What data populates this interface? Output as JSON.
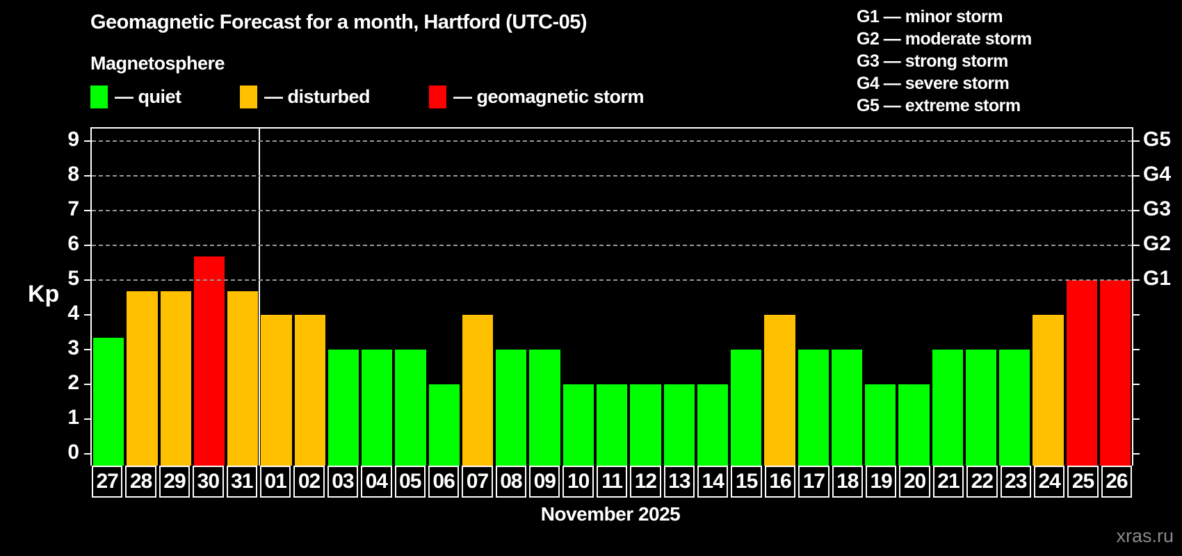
{
  "header": {
    "title": "Geomagnetic Forecast for a month, Hartford (UTC-05)",
    "subtitle": "Magnetosphere",
    "legend": [
      {
        "type": "quiet",
        "label": "— quiet"
      },
      {
        "type": "disturbed",
        "label": "— disturbed"
      },
      {
        "type": "storm",
        "label": "— geomagnetic storm"
      }
    ],
    "g_scale_legend": [
      "G1 — minor storm",
      "G2 — moderate storm",
      "G3 — strong storm",
      "G4 — severe storm",
      "G5 — extreme storm"
    ]
  },
  "chart_data": {
    "type": "bar",
    "title": "Geomagnetic Forecast for a month, Hartford (UTC-05)",
    "xlabel": "November 2025",
    "ylabel": "Kp",
    "ylim": [
      -0.35,
      9.35
    ],
    "grid": "dashed horizontal at Kp 5-9 only",
    "left_tick_values": [
      0,
      1,
      2,
      3,
      4,
      5,
      6,
      7,
      8,
      9
    ],
    "left_tick_labels": [
      "0",
      "1",
      "2",
      "3",
      "4",
      "5",
      "6",
      "7",
      "8",
      "9"
    ],
    "right_labels": [
      {
        "kp": 9,
        "label": "G5"
      },
      {
        "kp": 8,
        "label": "G4"
      },
      {
        "kp": 7,
        "label": "G3"
      },
      {
        "kp": 6,
        "label": "G2"
      },
      {
        "kp": 5,
        "label": "G1"
      }
    ],
    "gridline_values": [
      5,
      6,
      7,
      8,
      9
    ],
    "month_separator_after_index": 4,
    "categories": [
      "27",
      "28",
      "29",
      "30",
      "31",
      "01",
      "02",
      "03",
      "04",
      "05",
      "06",
      "07",
      "08",
      "09",
      "10",
      "11",
      "12",
      "13",
      "14",
      "15",
      "16",
      "17",
      "18",
      "19",
      "20",
      "21",
      "22",
      "23",
      "24",
      "25",
      "26"
    ],
    "values": [
      3.33,
      4.67,
      4.67,
      5.67,
      4.67,
      4,
      4,
      3,
      3,
      3,
      2,
      4,
      3,
      3,
      2,
      2,
      2,
      2,
      2,
      3,
      4,
      3,
      3,
      2,
      2,
      3,
      3,
      3,
      4,
      5,
      5
    ],
    "states": [
      "quiet",
      "disturbed",
      "disturbed",
      "storm",
      "disturbed",
      "disturbed",
      "disturbed",
      "quiet",
      "quiet",
      "quiet",
      "quiet",
      "disturbed",
      "quiet",
      "quiet",
      "quiet",
      "quiet",
      "quiet",
      "quiet",
      "quiet",
      "quiet",
      "disturbed",
      "quiet",
      "quiet",
      "quiet",
      "quiet",
      "quiet",
      "quiet",
      "quiet",
      "disturbed",
      "storm",
      "storm"
    ]
  },
  "footer": {
    "caption": "November 2025",
    "watermark": "xras.ru"
  },
  "colors": {
    "quiet": "#00ff00",
    "disturbed": "#ffc000",
    "storm": "#ff0000",
    "background": "#000000",
    "axis": "#ffffff",
    "grid": "#9a9a9a",
    "watermark": "#8a8a8a"
  }
}
